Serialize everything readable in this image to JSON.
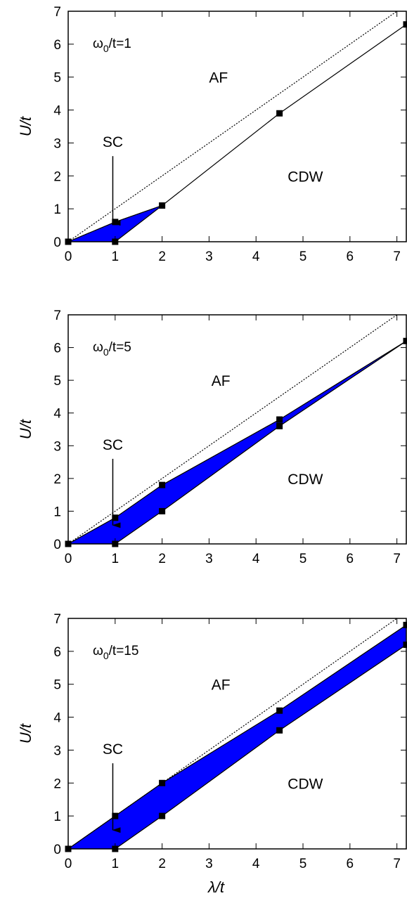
{
  "chart_data": [
    {
      "type": "line",
      "parameter_label": {
        "pre": "ω",
        "sub": "0",
        "post": "/t=1"
      },
      "xlabel": "",
      "ylabel": "U/t",
      "xlim": [
        0,
        7.2
      ],
      "ylim": [
        0,
        7
      ],
      "xticks": [
        0,
        1,
        2,
        3,
        4,
        5,
        6,
        7
      ],
      "yticks": [
        0,
        1,
        2,
        3,
        4,
        5,
        6,
        7
      ],
      "grid": false,
      "dotted_line": {
        "x": [
          0,
          7.2
        ],
        "y": [
          0,
          7.2
        ]
      },
      "upper_boundary": {
        "x": [
          0,
          1,
          2,
          4.5,
          7.2
        ],
        "y": [
          0,
          0.6,
          1.1,
          3.9,
          6.6
        ]
      },
      "lower_boundary": {
        "x": [
          0,
          1,
          2
        ],
        "y": [
          0,
          0,
          1.1
        ]
      },
      "sc_region": {
        "x": [
          0,
          1,
          2,
          2,
          1,
          0
        ],
        "y": [
          0,
          0.6,
          1.1,
          1.1,
          0,
          0
        ]
      },
      "markers": {
        "x": [
          0,
          1,
          1,
          2,
          4.5,
          7.2
        ],
        "y": [
          0,
          0.6,
          0,
          1.1,
          3.9,
          6.6
        ]
      },
      "region_labels": [
        {
          "text": "AF",
          "x": 3.2,
          "y": 5.0
        },
        {
          "text": "CDW",
          "x": 5.05,
          "y": 2.0
        }
      ],
      "arrow": {
        "text": "SC",
        "text_at": [
          0.95,
          3.05
        ],
        "from": [
          0.95,
          2.6
        ],
        "to": [
          0.95,
          0.55
        ]
      }
    },
    {
      "type": "line",
      "parameter_label": {
        "pre": "ω",
        "sub": "0",
        "post": "/t=5"
      },
      "xlabel": "",
      "ylabel": "U/t",
      "xlim": [
        0,
        7.2
      ],
      "ylim": [
        0,
        7
      ],
      "xticks": [
        0,
        1,
        2,
        3,
        4,
        5,
        6,
        7
      ],
      "yticks": [
        0,
        1,
        2,
        3,
        4,
        5,
        6,
        7
      ],
      "grid": false,
      "dotted_line": {
        "x": [
          0,
          7.2
        ],
        "y": [
          0,
          7.2
        ]
      },
      "upper_boundary": {
        "x": [
          0,
          1,
          2,
          4.5,
          7.2
        ],
        "y": [
          0,
          0.8,
          1.8,
          3.8,
          6.2
        ]
      },
      "lower_boundary": {
        "x": [
          0,
          1,
          2,
          4.5,
          7.2
        ],
        "y": [
          0,
          0,
          1.0,
          3.6,
          6.2
        ]
      },
      "sc_region": {
        "x": [
          0,
          1,
          2,
          4.5,
          7.2,
          4.5,
          2,
          1,
          0
        ],
        "y": [
          0,
          0.8,
          1.8,
          3.8,
          6.2,
          3.6,
          1.0,
          0,
          0
        ]
      },
      "markers": {
        "x": [
          0,
          1,
          1,
          2,
          2,
          4.5,
          4.5,
          7.2
        ],
        "y": [
          0,
          0.8,
          0,
          1.8,
          1.0,
          3.8,
          3.6,
          6.2
        ]
      },
      "region_labels": [
        {
          "text": "AF",
          "x": 3.25,
          "y": 5.0
        },
        {
          "text": "CDW",
          "x": 5.05,
          "y": 2.0
        }
      ],
      "arrow": {
        "text": "SC",
        "text_at": [
          0.95,
          3.05
        ],
        "from": [
          0.95,
          2.6
        ],
        "to": [
          0.95,
          0.55
        ]
      }
    },
    {
      "type": "line",
      "parameter_label": {
        "pre": "ω",
        "sub": "0",
        "post": "/t=15"
      },
      "xlabel": "λ/t",
      "ylabel": "U/t",
      "xlim": [
        0,
        7.2
      ],
      "ylim": [
        0,
        7
      ],
      "xticks": [
        0,
        1,
        2,
        3,
        4,
        5,
        6,
        7
      ],
      "yticks": [
        0,
        1,
        2,
        3,
        4,
        5,
        6,
        7
      ],
      "grid": false,
      "dotted_line": {
        "x": [
          0,
          7.2
        ],
        "y": [
          0,
          7.2
        ]
      },
      "upper_boundary": {
        "x": [
          0,
          1,
          2,
          4.5,
          7.2
        ],
        "y": [
          0,
          1.0,
          2.0,
          4.2,
          6.8
        ]
      },
      "lower_boundary": {
        "x": [
          0,
          1,
          2,
          4.5,
          7.2
        ],
        "y": [
          0,
          0,
          1.0,
          3.6,
          6.2
        ]
      },
      "sc_region": {
        "x": [
          0,
          1,
          2,
          4.5,
          7.2,
          7.2,
          4.5,
          2,
          1,
          0
        ],
        "y": [
          0,
          1.0,
          2.0,
          4.2,
          6.8,
          6.2,
          3.6,
          1.0,
          0,
          0
        ]
      },
      "markers": {
        "x": [
          0,
          1,
          1,
          2,
          2,
          4.5,
          4.5,
          7.2,
          7.2
        ],
        "y": [
          0,
          1.0,
          0,
          2.0,
          1.0,
          4.2,
          3.6,
          6.8,
          6.2
        ]
      },
      "region_labels": [
        {
          "text": "AF",
          "x": 3.25,
          "y": 5.0
        },
        {
          "text": "CDW",
          "x": 5.05,
          "y": 2.0
        }
      ],
      "arrow": {
        "text": "SC",
        "text_at": [
          0.95,
          3.05
        ],
        "from": [
          0.95,
          2.6
        ],
        "to": [
          0.95,
          0.55
        ]
      }
    }
  ],
  "colors": {
    "sc_fill": "#0000ff",
    "line": "#000000",
    "marker": "#000000",
    "background": "#ffffff"
  }
}
